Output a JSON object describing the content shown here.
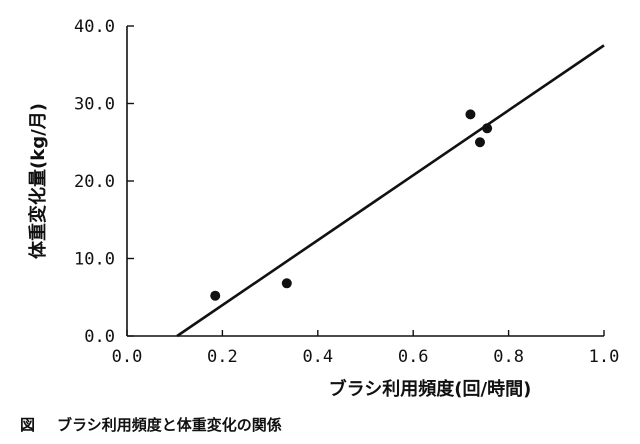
{
  "chart_data": {
    "type": "scatter",
    "xlabel": "ブラシ利用頻度(回/時間)",
    "ylabel": "体重変化量(kg/月)",
    "xlim": [
      0.0,
      1.0
    ],
    "ylim": [
      0.0,
      40.0
    ],
    "x_ticks": [
      "0.0",
      "0.2",
      "0.4",
      "0.6",
      "0.8",
      "1.0"
    ],
    "y_ticks": [
      "0.0",
      "10.0",
      "20.0",
      "30.0",
      "40.0"
    ],
    "x_tick_values": [
      0.0,
      0.2,
      0.4,
      0.6,
      0.8,
      1.0
    ],
    "y_tick_values": [
      0.0,
      10.0,
      20.0,
      30.0,
      40.0
    ],
    "points": [
      {
        "x": 0.185,
        "y": 5.2
      },
      {
        "x": 0.335,
        "y": 6.8
      },
      {
        "x": 0.72,
        "y": 28.6
      },
      {
        "x": 0.74,
        "y": 25.0
      },
      {
        "x": 0.755,
        "y": 26.8
      }
    ],
    "trendline": {
      "x": [
        0.105,
        1.0
      ],
      "y": [
        0.0,
        37.5
      ]
    },
    "grid": false,
    "legend": "none"
  },
  "caption": {
    "label": "図",
    "text": "ブラシ利用頻度と体重変化の関係"
  }
}
